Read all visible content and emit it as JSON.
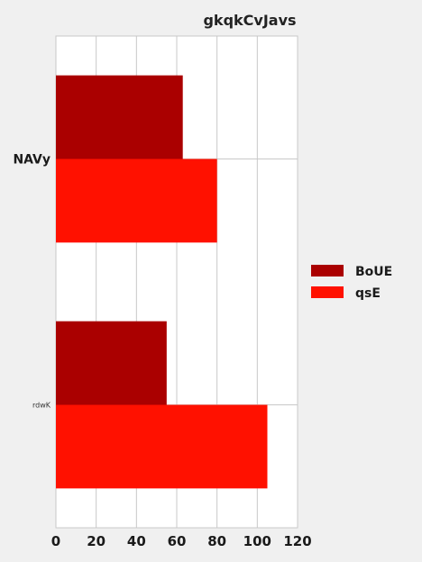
{
  "chart_data": {
    "type": "bar",
    "orientation": "horizontal",
    "title": "gkqkCvJavs",
    "categories": [
      "NAVy",
      "rdwK"
    ],
    "series": [
      {
        "name": "BoUE",
        "values": [
          63,
          55
        ],
        "color": "#aa0000"
      },
      {
        "name": "qsE",
        "values": [
          80,
          105
        ],
        "color": "#ff1100"
      }
    ],
    "xlim": [
      0,
      120
    ],
    "xticks": [
      0,
      20,
      40,
      60,
      80,
      100,
      120
    ],
    "grid": true,
    "legend": "right"
  }
}
